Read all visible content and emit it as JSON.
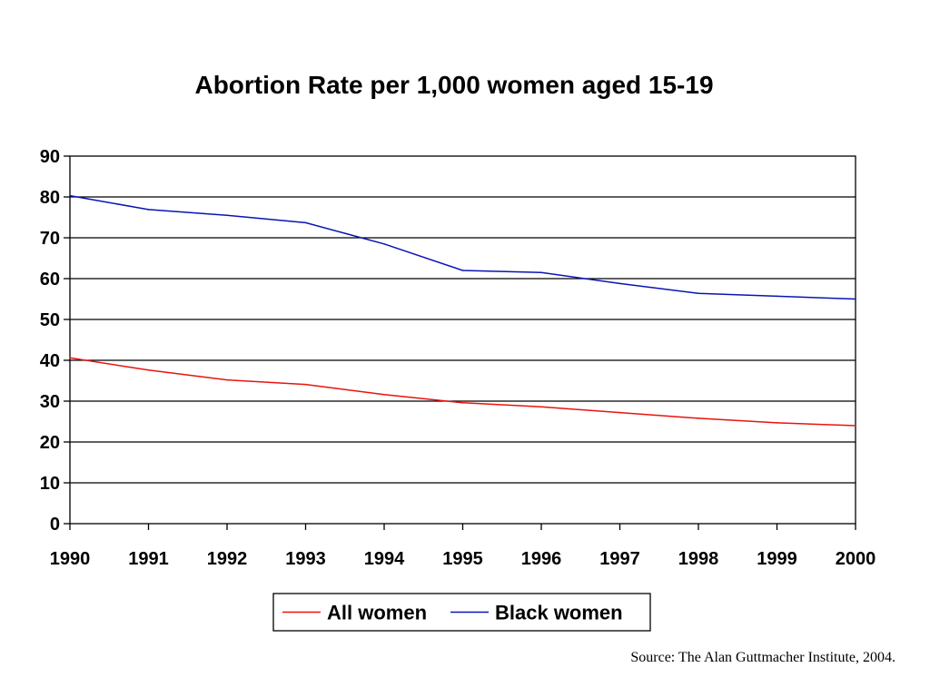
{
  "chart_data": {
    "type": "line",
    "title": "Abortion Rate per 1,000 women aged 15-19",
    "xlabel": "",
    "ylabel": "",
    "x": [
      "1990",
      "1991",
      "1992",
      "1993",
      "1994",
      "1995",
      "1996",
      "1997",
      "1998",
      "1999",
      "2000"
    ],
    "ylim": [
      0,
      90
    ],
    "yticks": [
      0,
      10,
      20,
      30,
      40,
      50,
      60,
      70,
      80,
      90
    ],
    "grid": "horizontal",
    "legend_position": "bottom",
    "series": [
      {
        "name": "All women",
        "color": "#e8140c",
        "values": [
          40.6,
          37.6,
          35.2,
          34.1,
          31.6,
          29.6,
          28.6,
          27.2,
          25.8,
          24.7,
          24.0
        ]
      },
      {
        "name": "Black women",
        "color": "#0a14b4",
        "values": [
          80.3,
          76.9,
          75.5,
          73.7,
          68.5,
          62.0,
          61.5,
          58.8,
          56.4,
          55.7,
          55.0
        ]
      }
    ]
  },
  "source": "Source: The Alan Guttmacher Institute, 2004."
}
